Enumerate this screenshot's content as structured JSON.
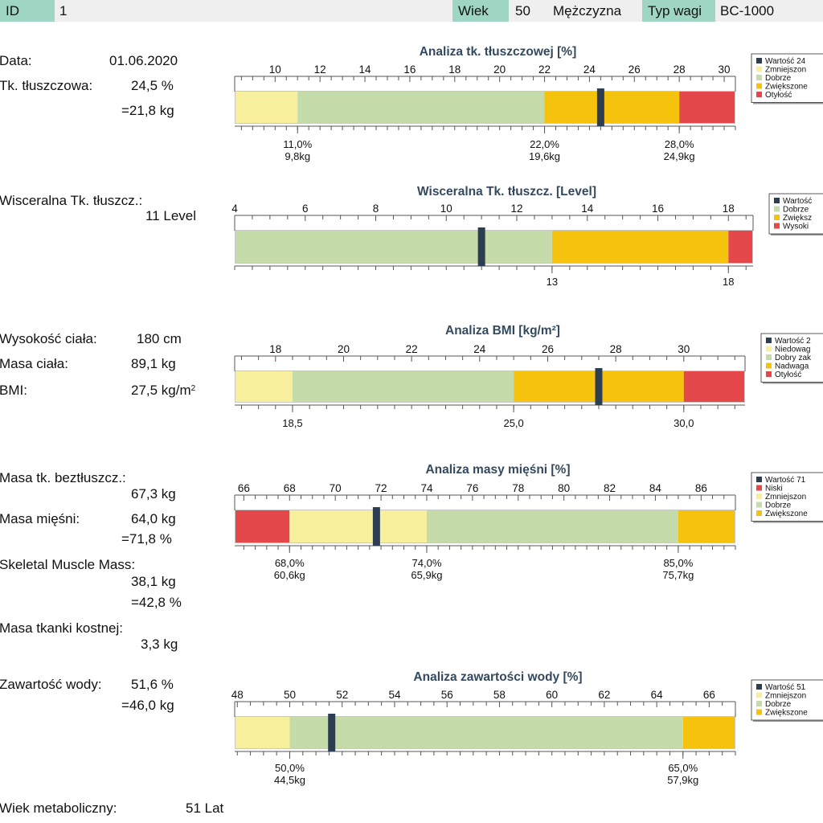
{
  "header": {
    "id_label": "ID",
    "id_value": "1",
    "age_label": "Wiek",
    "age_value": "50",
    "gender": "Mężczyzna",
    "scale_label": "Typ wagi",
    "scale_value": "BC-1000"
  },
  "left": {
    "date_label": "Data:",
    "date_value": "01.06.2020",
    "fat_label": "Tk. tłuszczowa:",
    "fat_pct": "24,5 %",
    "fat_kg": "=21,8 kg",
    "visceral_label": "Wisceralna Tk. tłuszcz.:",
    "visceral_value": "11 Level",
    "height_label": "Wysokość ciała:",
    "height_value": "180 cm",
    "mass_label": "Masa ciała:",
    "mass_value": "89,1 kg",
    "bmi_label": "BMI:",
    "bmi_value": "27,5 kg/m",
    "bmi_sup": "2",
    "lean_label": "Masa tk. beztłuszcz.:",
    "lean_value": "67,3 kg",
    "muscle_label": "Masa mięśni:",
    "muscle_kg": "64,0 kg",
    "muscle_pct": "=71,8 %",
    "skeletal_label": "Skeletal Muscle Mass:",
    "skeletal_kg": "38,1 kg",
    "skeletal_pct": "=42,8 %",
    "bone_label": "Masa tkanki kostnej:",
    "bone_value": "3,3 kg",
    "water_label": "Zawartość wody:",
    "water_pct": "51,6 %",
    "water_kg": "=46,0 kg",
    "meta_label": "Wiek metaboliczny:",
    "meta_value": "51 Lat"
  },
  "colors": {
    "low": "#f7ef9c",
    "good": "#c5dcaa",
    "high": "#f5c20e",
    "obese": "#e5484b",
    "marker": "#2c3e50",
    "title": "#34495e"
  },
  "chart_data": [
    {
      "type": "bar",
      "title": "Analiza tk. tłuszczowej [%]",
      "xlim": [
        8.2,
        30.5
      ],
      "ticks": [
        10,
        12,
        14,
        16,
        18,
        20,
        22,
        24,
        26,
        28,
        30
      ],
      "minor_step": 0.5,
      "segments": [
        {
          "from": 8.2,
          "to": 11.0,
          "category": "low"
        },
        {
          "from": 11.0,
          "to": 22.0,
          "category": "good"
        },
        {
          "from": 22.0,
          "to": 28.0,
          "category": "high"
        },
        {
          "from": 28.0,
          "to": 30.5,
          "category": "obese"
        }
      ],
      "value": 24.5,
      "threshold_labels": [
        {
          "at": 11.0,
          "lines": [
            "11,0%",
            "9,8kg"
          ]
        },
        {
          "at": 22.0,
          "lines": [
            "22,0%",
            "19,6kg"
          ]
        },
        {
          "at": 28.0,
          "lines": [
            "28,0%",
            "24,9kg"
          ]
        }
      ],
      "legend": [
        {
          "label": "Wartość 24",
          "category": "marker"
        },
        {
          "label": "Zmniejszon",
          "category": "low"
        },
        {
          "label": "Dobrze",
          "category": "good"
        },
        {
          "label": "Zwiększone",
          "category": "high"
        },
        {
          "label": "Otyłość",
          "category": "obese"
        }
      ]
    },
    {
      "type": "bar",
      "title": "Wisceralna Tk. tłuszcz. [Level]",
      "xlim": [
        4,
        18.7
      ],
      "ticks": [
        4,
        6,
        8,
        10,
        12,
        14,
        16,
        18
      ],
      "minor_step": 0.5,
      "segments": [
        {
          "from": 4,
          "to": 13,
          "category": "good"
        },
        {
          "from": 13,
          "to": 18,
          "category": "high"
        },
        {
          "from": 18,
          "to": 18.7,
          "category": "obese"
        }
      ],
      "value": 11,
      "threshold_labels": [
        {
          "at": 13,
          "lines": [
            "13"
          ]
        },
        {
          "at": 18,
          "lines": [
            "18"
          ]
        }
      ],
      "legend": [
        {
          "label": "Wartość",
          "category": "marker"
        },
        {
          "label": "Dobrze",
          "category": "good"
        },
        {
          "label": "Zwiększ",
          "category": "high"
        },
        {
          "label": "Wysoki",
          "category": "obese"
        }
      ]
    },
    {
      "type": "bar",
      "title": "Analiza BMI [kg/m²]",
      "xlim": [
        16.8,
        31.8
      ],
      "ticks": [
        18,
        20,
        22,
        24,
        26,
        28,
        30
      ],
      "minor_step": 0.5,
      "segments": [
        {
          "from": 16.8,
          "to": 18.5,
          "category": "low"
        },
        {
          "from": 18.5,
          "to": 25.0,
          "category": "good"
        },
        {
          "from": 25.0,
          "to": 30.0,
          "category": "high"
        },
        {
          "from": 30.0,
          "to": 31.8,
          "category": "obese"
        }
      ],
      "value": 27.5,
      "threshold_labels": [
        {
          "at": 18.5,
          "lines": [
            "18,5"
          ]
        },
        {
          "at": 25.0,
          "lines": [
            "25,0"
          ]
        },
        {
          "at": 30.0,
          "lines": [
            "30,0"
          ]
        }
      ],
      "legend": [
        {
          "label": "Wartość 2",
          "category": "marker"
        },
        {
          "label": "Niedowag",
          "category": "low"
        },
        {
          "label": "Dobry zak",
          "category": "good"
        },
        {
          "label": "Nadwaga",
          "category": "high"
        },
        {
          "label": "Otyłość",
          "category": "obese"
        }
      ]
    },
    {
      "type": "bar",
      "title": "Analiza masy mięśni [%]",
      "xlim": [
        65.6,
        87.5
      ],
      "ticks": [
        66,
        68,
        70,
        72,
        74,
        76,
        78,
        80,
        82,
        84,
        86
      ],
      "minor_step": 0.5,
      "segments": [
        {
          "from": 65.6,
          "to": 68.0,
          "category": "obese"
        },
        {
          "from": 68.0,
          "to": 74.0,
          "category": "low"
        },
        {
          "from": 74.0,
          "to": 85.0,
          "category": "good"
        },
        {
          "from": 85.0,
          "to": 87.5,
          "category": "high"
        }
      ],
      "value": 71.8,
      "threshold_labels": [
        {
          "at": 68.0,
          "lines": [
            "68,0%",
            "60,6kg"
          ]
        },
        {
          "at": 74.0,
          "lines": [
            "74,0%",
            "65,9kg"
          ]
        },
        {
          "at": 85.0,
          "lines": [
            "85,0%",
            "75,7kg"
          ]
        }
      ],
      "legend": [
        {
          "label": "Wartość 71",
          "category": "marker"
        },
        {
          "label": "Niski",
          "category": "obese"
        },
        {
          "label": "Zmniejszon",
          "category": "low"
        },
        {
          "label": "Dobrze",
          "category": "good"
        },
        {
          "label": "Zwiększone",
          "category": "high"
        }
      ]
    },
    {
      "type": "bar",
      "title": "Analiza zawartości wody [%]",
      "xlim": [
        47.9,
        67.0
      ],
      "ticks": [
        48,
        50,
        52,
        54,
        56,
        58,
        60,
        62,
        64,
        66
      ],
      "minor_step": 0.5,
      "segments": [
        {
          "from": 47.9,
          "to": 50.0,
          "category": "low"
        },
        {
          "from": 50.0,
          "to": 65.0,
          "category": "good"
        },
        {
          "from": 65.0,
          "to": 67.0,
          "category": "high"
        }
      ],
      "value": 51.6,
      "threshold_labels": [
        {
          "at": 50.0,
          "lines": [
            "50,0%",
            "44,5kg"
          ]
        },
        {
          "at": 65.0,
          "lines": [
            "65,0%",
            "57,9kg"
          ]
        }
      ],
      "legend": [
        {
          "label": "Wartość 51",
          "category": "marker"
        },
        {
          "label": "Zmniejszon",
          "category": "low"
        },
        {
          "label": "Dobrze",
          "category": "good"
        },
        {
          "label": "Zwiększone",
          "category": "high"
        }
      ]
    }
  ]
}
